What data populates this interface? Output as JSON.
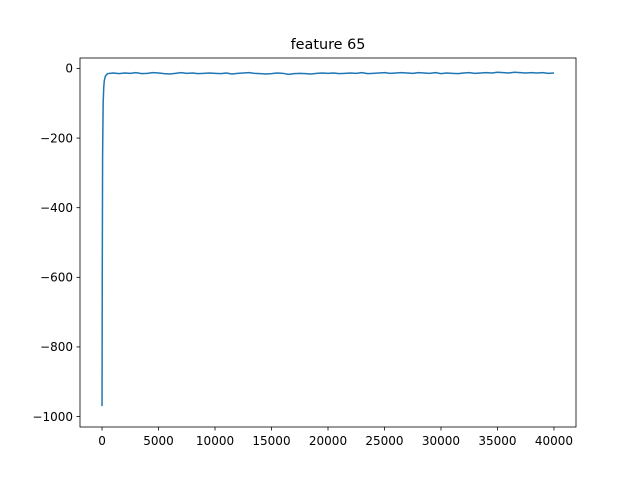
{
  "chart_data": {
    "type": "line",
    "title": "feature 65",
    "xlabel": "",
    "ylabel": "",
    "xlim": [
      -1950,
      41950
    ],
    "ylim": [
      -1030,
      30
    ],
    "grid": false,
    "legend": "none",
    "x_ticks": [
      0,
      5000,
      10000,
      15000,
      20000,
      25000,
      30000,
      35000,
      40000
    ],
    "x_tick_labels": [
      "0",
      "5000",
      "10000",
      "15000",
      "20000",
      "25000",
      "30000",
      "35000",
      "40000"
    ],
    "y_ticks": [
      0,
      -200,
      -400,
      -600,
      -800,
      -1000
    ],
    "y_tick_labels": [
      "0",
      "−200",
      "−400",
      "−600",
      "−800",
      "−1000"
    ],
    "series": [
      {
        "color": "#1f77b4",
        "x": [
          0,
          20,
          50,
          100,
          150,
          200,
          300,
          400,
          500,
          700,
          1000,
          1500,
          2000,
          2500,
          3000,
          3500,
          4000,
          4500,
          5000,
          5500,
          6000,
          6500,
          7000,
          7500,
          8000,
          8500,
          9000,
          9500,
          10000,
          10500,
          11000,
          11500,
          12000,
          12500,
          13000,
          13500,
          14000,
          14500,
          15000,
          15500,
          16000,
          16500,
          17000,
          17500,
          18000,
          18500,
          19000,
          19500,
          20000,
          20500,
          21000,
          21500,
          22000,
          22500,
          23000,
          23500,
          24000,
          24500,
          25000,
          25500,
          26000,
          26500,
          27000,
          27500,
          28000,
          28500,
          29000,
          29500,
          30000,
          30500,
          31000,
          31500,
          32000,
          32500,
          33000,
          33500,
          34000,
          34500,
          35000,
          35500,
          36000,
          36500,
          37000,
          37500,
          38000,
          38500,
          39000,
          39500,
          40000
        ],
        "values": [
          -970,
          -600,
          -250,
          -100,
          -55,
          -35,
          -22,
          -18,
          -15,
          -14,
          -13,
          -15,
          -13,
          -14,
          -12,
          -15,
          -14,
          -12,
          -13,
          -15,
          -16,
          -14,
          -12,
          -14,
          -13,
          -15,
          -14,
          -13,
          -14,
          -15,
          -13,
          -16,
          -14,
          -13,
          -12,
          -14,
          -15,
          -16,
          -15,
          -13,
          -14,
          -17,
          -15,
          -14,
          -15,
          -16,
          -14,
          -13,
          -14,
          -13,
          -15,
          -14,
          -13,
          -14,
          -12,
          -15,
          -14,
          -13,
          -12,
          -14,
          -13,
          -12,
          -13,
          -14,
          -12,
          -13,
          -14,
          -12,
          -15,
          -13,
          -14,
          -15,
          -13,
          -12,
          -14,
          -13,
          -12,
          -13,
          -11,
          -12,
          -13,
          -11,
          -12,
          -13,
          -12,
          -13,
          -12,
          -14,
          -13
        ]
      }
    ]
  }
}
